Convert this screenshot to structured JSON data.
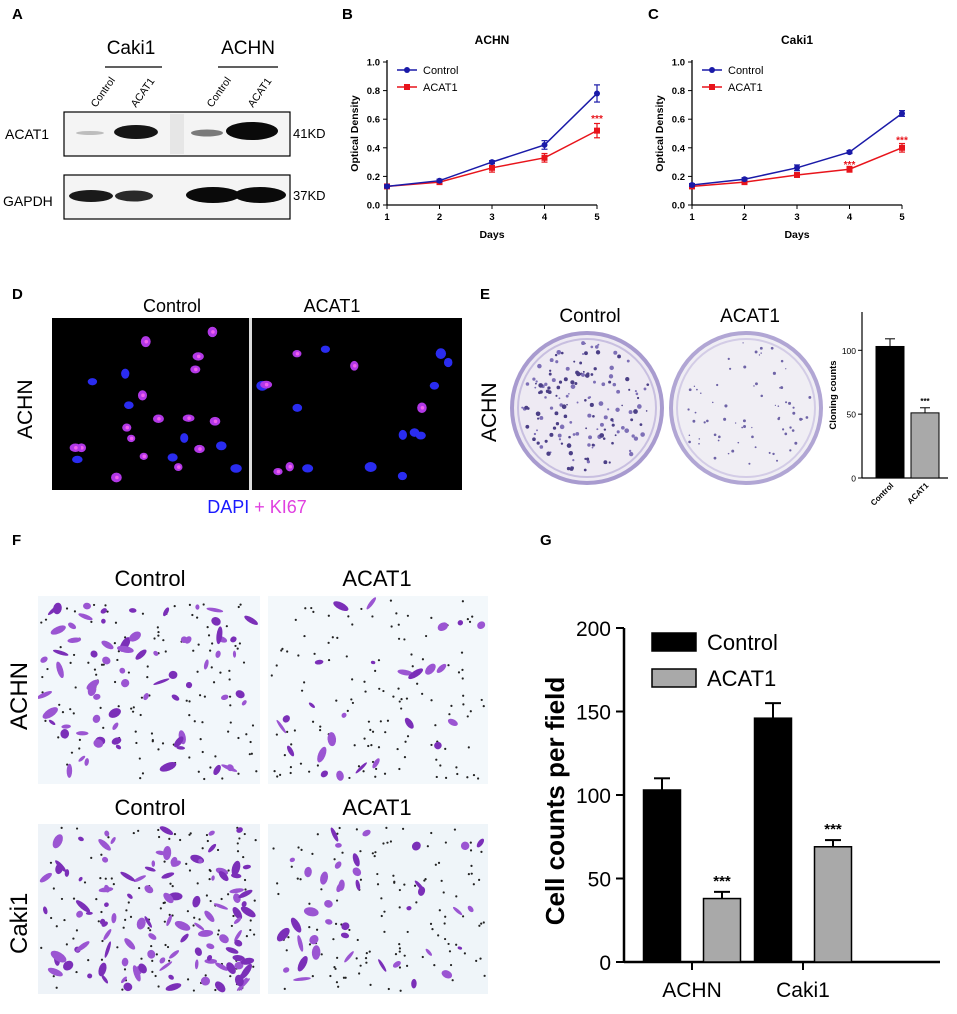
{
  "panels": {
    "a": "A",
    "b": "B",
    "c": "C",
    "d": "D",
    "e": "E",
    "f": "F",
    "g": "G"
  },
  "western": {
    "groups": [
      "Caki1",
      "ACHN"
    ],
    "lanes": [
      "Control",
      "ACAT1",
      "Control",
      "ACAT1"
    ],
    "proteins": [
      "ACAT1",
      "GAPDH"
    ],
    "sizes": [
      "41KD",
      "37KD"
    ]
  },
  "panel_d": {
    "columns": [
      "Control",
      "ACAT1"
    ],
    "row_label": "ACHN",
    "legend": {
      "dapi": "DAPI",
      "plus": " + ",
      "ki67": "KI67"
    },
    "colors": {
      "dapi": "#1a1aff",
      "ki67": "#e040e0"
    }
  },
  "panel_e": {
    "columns": [
      "Control",
      "ACAT1"
    ],
    "row_label": "ACHN"
  },
  "panel_f": {
    "columns": [
      "Control",
      "ACAT1"
    ],
    "rows": [
      "ACHN",
      "Caki1"
    ]
  },
  "chart_data": [
    {
      "type": "line",
      "title": "ACHN",
      "xlabel": "Days",
      "ylabel": "Optical Density",
      "x": [
        1,
        2,
        3,
        4,
        5
      ],
      "xlim": [
        1,
        5
      ],
      "ylim": [
        0.0,
        1.0
      ],
      "yticks": [
        "0.0",
        "0.2",
        "0.4",
        "0.6",
        "0.8",
        "1.0"
      ],
      "xticks": [
        "1",
        "2",
        "3",
        "4",
        "5"
      ],
      "legend": "top-left",
      "series": [
        {
          "name": "Control",
          "color": "#1a1aa8",
          "values": [
            0.13,
            0.17,
            0.3,
            0.42,
            0.78
          ],
          "errors": [
            0.01,
            0.01,
            0.01,
            0.03,
            0.06
          ]
        },
        {
          "name": "ACAT1",
          "color": "#e8141b",
          "values": [
            0.13,
            0.16,
            0.26,
            0.33,
            0.52
          ],
          "errors": [
            0.01,
            0.01,
            0.03,
            0.03,
            0.05
          ]
        }
      ],
      "annotations": [
        {
          "x": 5,
          "y": 0.6,
          "text": "***",
          "color": "#e8141b"
        }
      ]
    },
    {
      "type": "line",
      "title": "Caki1",
      "xlabel": "Days",
      "ylabel": "Optical Density",
      "x": [
        1,
        2,
        3,
        4,
        5
      ],
      "xlim": [
        1,
        5
      ],
      "ylim": [
        0.0,
        1.0
      ],
      "yticks": [
        "0.0",
        "0.2",
        "0.4",
        "0.6",
        "0.8",
        "1.0"
      ],
      "xticks": [
        "1",
        "2",
        "3",
        "4",
        "5"
      ],
      "legend": "top-left",
      "series": [
        {
          "name": "Control",
          "color": "#1a1aa8",
          "values": [
            0.14,
            0.18,
            0.26,
            0.37,
            0.64
          ],
          "errors": [
            0.01,
            0.01,
            0.02,
            0.01,
            0.02
          ]
        },
        {
          "name": "ACAT1",
          "color": "#e8141b",
          "values": [
            0.13,
            0.16,
            0.21,
            0.25,
            0.4
          ],
          "errors": [
            0.01,
            0.01,
            0.01,
            0.02,
            0.03
          ]
        }
      ],
      "annotations": [
        {
          "x": 4,
          "y": 0.28,
          "text": "***",
          "color": "#e8141b"
        },
        {
          "x": 5,
          "y": 0.45,
          "text": "***",
          "color": "#e8141b"
        }
      ]
    },
    {
      "type": "bar",
      "categories": [
        "Control",
        "ACAT1"
      ],
      "values": [
        103,
        51
      ],
      "errors": [
        6,
        4
      ],
      "colors": [
        "#000000",
        "#a9a9a9"
      ],
      "ylabel": "Cloning counts",
      "ylim": [
        0,
        130
      ],
      "yticks": [
        "0",
        "50",
        "100"
      ],
      "annotations": [
        {
          "category": "ACAT1",
          "text": "***"
        }
      ]
    },
    {
      "type": "bar",
      "categories": [
        "ACHN",
        "Caki1"
      ],
      "ylabel": "Cell counts per field",
      "ylim": [
        0,
        200
      ],
      "yticks": [
        "0",
        "50",
        "100",
        "150",
        "200"
      ],
      "legend": "top-left",
      "series": [
        {
          "name": "Control",
          "color": "#000000",
          "values": [
            103,
            146
          ],
          "errors": [
            7,
            9
          ]
        },
        {
          "name": "ACAT1",
          "color": "#a9a9a9",
          "values": [
            38,
            69
          ],
          "errors": [
            4,
            4
          ]
        }
      ],
      "annotations": [
        {
          "category": "ACHN",
          "series": "ACAT1",
          "text": "***"
        },
        {
          "category": "Caki1",
          "series": "ACAT1",
          "text": "***"
        }
      ]
    }
  ]
}
